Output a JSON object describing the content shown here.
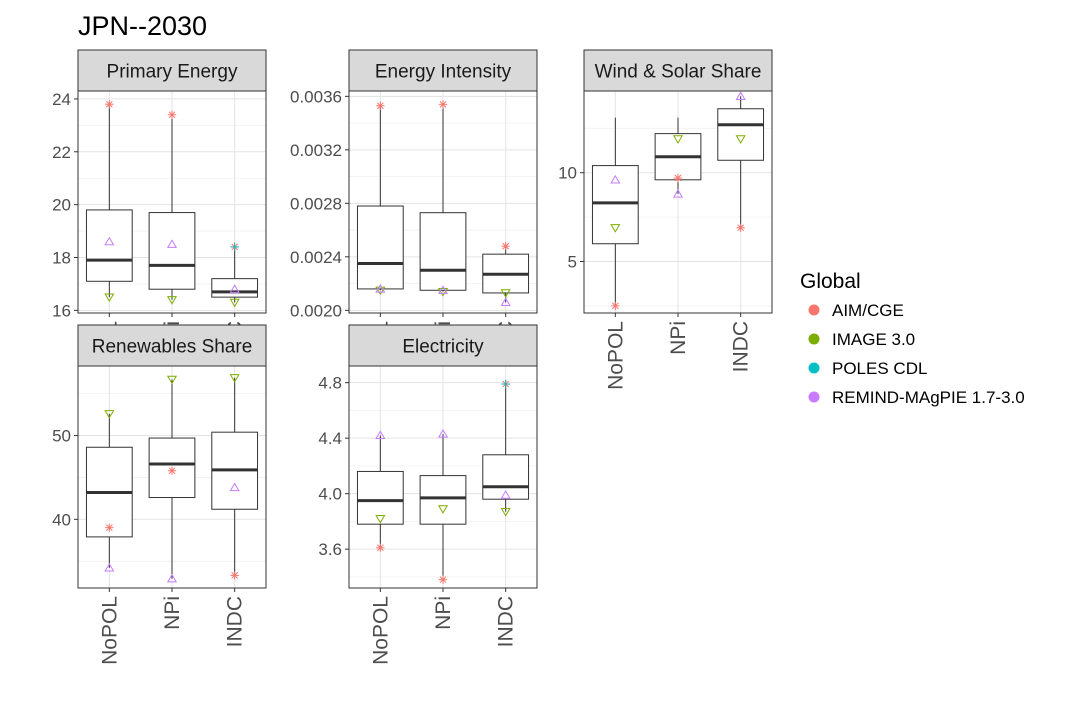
{
  "page_title": "JPN--2030",
  "legend": {
    "title": "Global",
    "placement": "right",
    "entries": [
      {
        "name": "AIM/CGE",
        "color": "#F8766D",
        "symbol": "asterisk"
      },
      {
        "name": "IMAGE 3.0",
        "color": "#7CAE00",
        "symbol": "triangle-down"
      },
      {
        "name": "POLES CDL",
        "color": "#00BFC4",
        "symbol": "plus"
      },
      {
        "name": "REMIND-MAgPIE 1.7-3.0",
        "color": "#C77CFF",
        "symbol": "triangle-up"
      }
    ]
  },
  "chart_data": [
    {
      "type": "box",
      "title": "Primary Energy",
      "categories": [
        "NoPOL",
        "NPi",
        "INDC"
      ],
      "ylim": [
        15.9,
        24.3
      ],
      "yticks": [
        16,
        18,
        20,
        22,
        24
      ],
      "tick_labels": [
        "16",
        "18",
        "20",
        "22",
        "24"
      ],
      "grid": true,
      "boxes": [
        {
          "min": 16.5,
          "q1": 17.1,
          "median": 17.9,
          "q3": 19.8,
          "max": 23.8
        },
        {
          "min": 16.4,
          "q1": 16.8,
          "median": 17.7,
          "q3": 19.7,
          "max": 23.4
        },
        {
          "min": 16.3,
          "q1": 16.5,
          "median": 16.7,
          "q3": 17.2,
          "max": 18.4
        }
      ],
      "points": [
        {
          "model": "AIM/CGE",
          "values": [
            23.8,
            23.4,
            18.4
          ]
        },
        {
          "model": "IMAGE 3.0",
          "values": [
            16.5,
            16.4,
            16.3
          ]
        },
        {
          "model": "POLES CDL",
          "values": [
            null,
            null,
            18.4
          ]
        },
        {
          "model": "REMIND-MAgPIE 1.7-3.0",
          "values": [
            18.6,
            18.5,
            16.8
          ]
        }
      ]
    },
    {
      "type": "box",
      "title": "Energy Intensity",
      "categories": [
        "NoPOL",
        "NPi",
        "INDC"
      ],
      "ylim": [
        0.00198,
        0.00364
      ],
      "yticks": [
        0.002,
        0.0024,
        0.0028,
        0.0032,
        0.0036
      ],
      "tick_labels": [
        "0.0020",
        "0.0024",
        "0.0028",
        "0.0032",
        "0.0036"
      ],
      "grid": true,
      "boxes": [
        {
          "min": 0.00215,
          "q1": 0.00216,
          "median": 0.00235,
          "q3": 0.00278,
          "max": 0.00353
        },
        {
          "min": 0.00214,
          "q1": 0.00215,
          "median": 0.0023,
          "q3": 0.00273,
          "max": 0.00354
        },
        {
          "min": 0.00206,
          "q1": 0.00213,
          "median": 0.00227,
          "q3": 0.00242,
          "max": 0.00248
        }
      ],
      "points": [
        {
          "model": "AIM/CGE",
          "values": [
            0.00353,
            0.00354,
            0.00248
          ]
        },
        {
          "model": "IMAGE 3.0",
          "values": [
            0.00215,
            0.00214,
            0.00213
          ]
        },
        {
          "model": "POLES CDL",
          "values": [
            null,
            null,
            null
          ]
        },
        {
          "model": "REMIND-MAgPIE 1.7-3.0",
          "values": [
            0.00216,
            0.00215,
            0.00206
          ]
        }
      ]
    },
    {
      "type": "box",
      "title": "Wind & Solar Share",
      "categories": [
        "NoPOL",
        "NPi",
        "INDC"
      ],
      "ylim": [
        2.1,
        14.6
      ],
      "yticks": [
        5,
        10
      ],
      "tick_labels": [
        "5",
        "10"
      ],
      "grid": true,
      "boxes": [
        {
          "min": 2.5,
          "q1": 6.0,
          "median": 8.3,
          "q3": 10.4,
          "max": 13.1
        },
        {
          "min": 8.8,
          "q1": 9.6,
          "median": 10.9,
          "q3": 12.2,
          "max": 13.1
        },
        {
          "min": 6.9,
          "q1": 10.7,
          "median": 12.7,
          "q3": 13.6,
          "max": 14.3
        }
      ],
      "points": [
        {
          "model": "AIM/CGE",
          "values": [
            2.5,
            9.7,
            6.9
          ]
        },
        {
          "model": "IMAGE 3.0",
          "values": [
            6.9,
            11.9,
            11.9
          ]
        },
        {
          "model": "POLES CDL",
          "values": [
            null,
            null,
            null
          ]
        },
        {
          "model": "REMIND-MAgPIE 1.7-3.0",
          "values": [
            9.6,
            8.8,
            14.3
          ]
        }
      ]
    },
    {
      "type": "box",
      "title": "Renewables Share",
      "categories": [
        "NoPOL",
        "NPi",
        "INDC"
      ],
      "ylim": [
        31.8,
        58.3
      ],
      "yticks": [
        40,
        50
      ],
      "tick_labels": [
        "40",
        "50"
      ],
      "grid": true,
      "boxes": [
        {
          "min": 34.2,
          "q1": 37.9,
          "median": 43.2,
          "q3": 48.6,
          "max": 52.6
        },
        {
          "min": 32.9,
          "q1": 42.6,
          "median": 46.6,
          "q3": 49.7,
          "max": 56.7
        },
        {
          "min": 33.3,
          "q1": 41.2,
          "median": 45.9,
          "q3": 50.4,
          "max": 56.9
        }
      ],
      "points": [
        {
          "model": "AIM/CGE",
          "values": [
            39.0,
            45.8,
            33.3
          ]
        },
        {
          "model": "IMAGE 3.0",
          "values": [
            52.6,
            56.7,
            56.9
          ]
        },
        {
          "model": "POLES CDL",
          "values": [
            null,
            null,
            null
          ]
        },
        {
          "model": "REMIND-MAgPIE 1.7-3.0",
          "values": [
            34.2,
            32.9,
            43.8
          ]
        }
      ]
    },
    {
      "type": "box",
      "title": "Electricity",
      "categories": [
        "NoPOL",
        "NPi",
        "INDC"
      ],
      "ylim": [
        3.32,
        4.92
      ],
      "yticks": [
        3.6,
        4.0,
        4.4,
        4.8
      ],
      "tick_labels": [
        "3.6",
        "4.0",
        "4.4",
        "4.8"
      ],
      "grid": true,
      "boxes": [
        {
          "min": 3.61,
          "q1": 3.78,
          "median": 3.95,
          "q3": 4.16,
          "max": 4.42
        },
        {
          "min": 3.38,
          "q1": 3.78,
          "median": 3.97,
          "q3": 4.13,
          "max": 4.43
        },
        {
          "min": 3.87,
          "q1": 3.96,
          "median": 4.05,
          "q3": 4.28,
          "max": 4.79
        }
      ],
      "points": [
        {
          "model": "AIM/CGE",
          "values": [
            3.61,
            3.38,
            4.79
          ]
        },
        {
          "model": "IMAGE 3.0",
          "values": [
            3.82,
            3.89,
            3.87
          ]
        },
        {
          "model": "POLES CDL",
          "values": [
            null,
            null,
            4.79
          ]
        },
        {
          "model": "REMIND-MAgPIE 1.7-3.0",
          "values": [
            4.42,
            4.43,
            3.99
          ]
        }
      ]
    }
  ]
}
